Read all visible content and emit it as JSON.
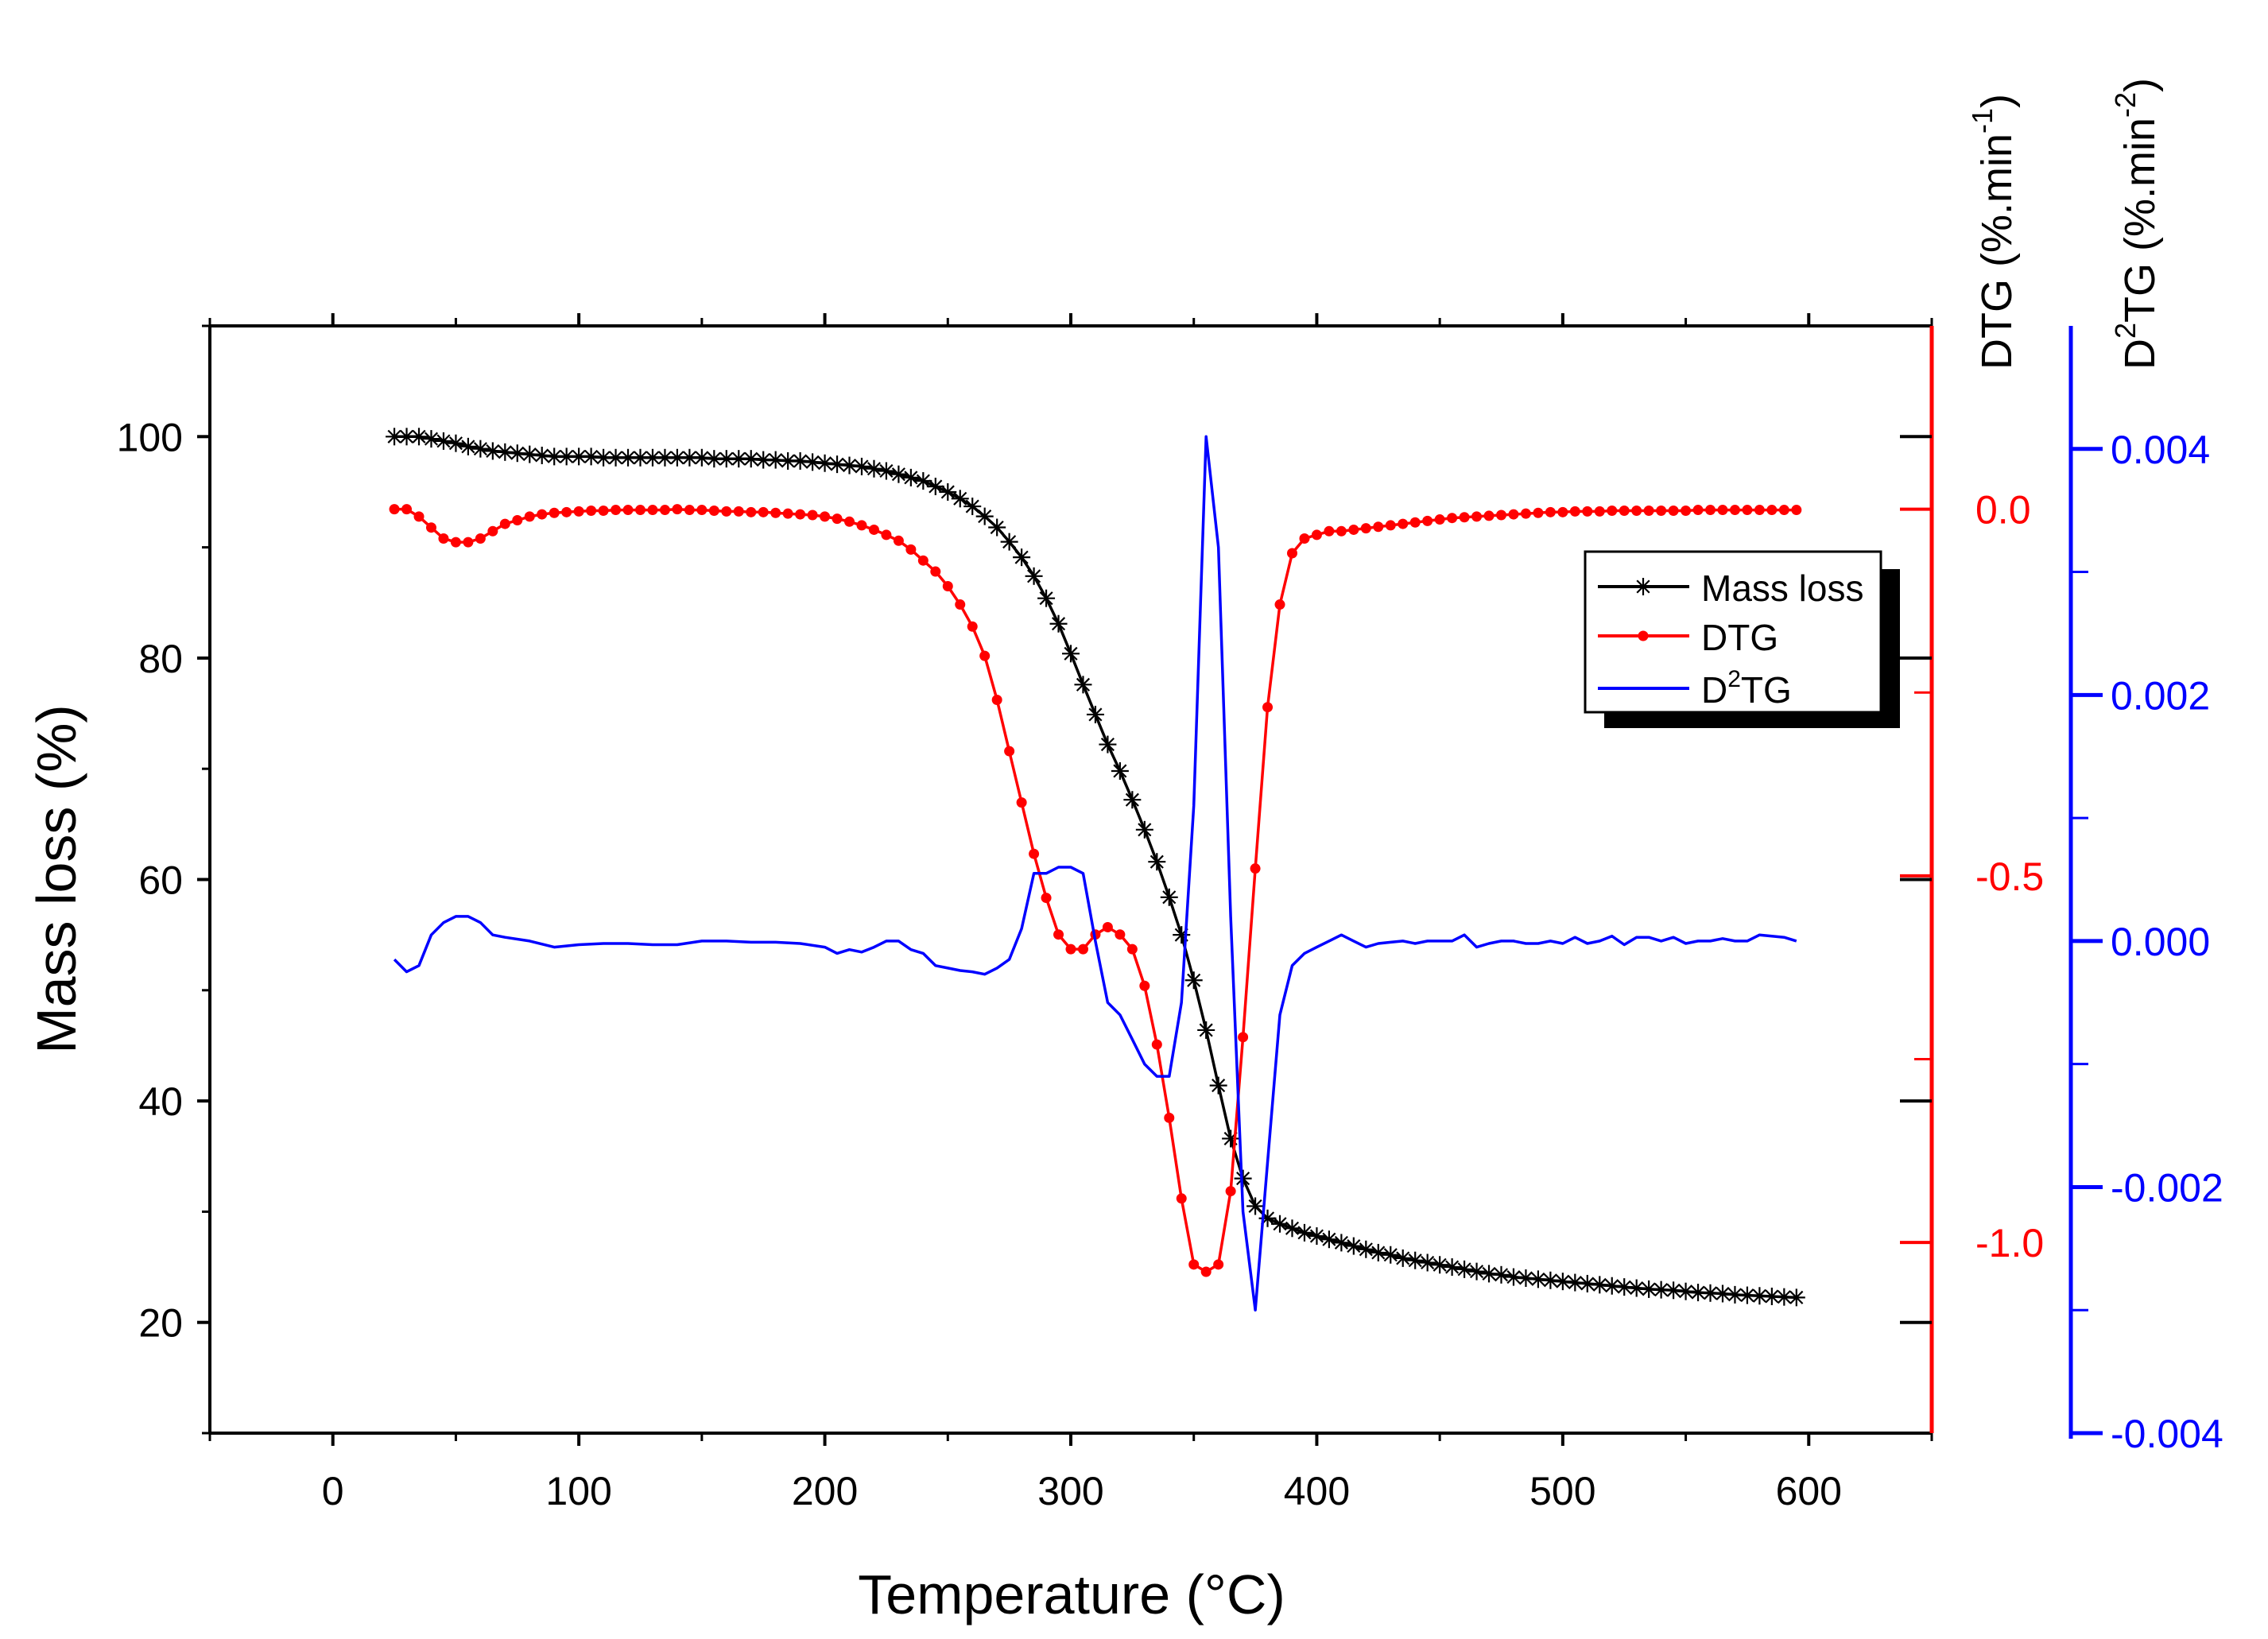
{
  "chart_data": {
    "type": "line",
    "title": "",
    "xlabel": "Temperature (°C)",
    "xlim": [
      -50,
      650
    ],
    "xticks": [
      0,
      100,
      200,
      300,
      400,
      500,
      600
    ],
    "xtick_labels": [
      "0",
      "100",
      "200",
      "300",
      "400",
      "500",
      "600"
    ],
    "axes": {
      "left": {
        "label": "Mass loss (%)",
        "color": "#000000",
        "ylim": [
          10,
          110
        ],
        "ticks": [
          20,
          40,
          60,
          80,
          100
        ],
        "tick_labels": [
          "20",
          "40",
          "60",
          "80",
          "100"
        ]
      },
      "dtg": {
        "label_main": "DTG (%.min",
        "label_sup": "-1",
        "label_close": ")",
        "color": "#ff0000",
        "ylim": [
          -1.26,
          0.25
        ],
        "ticks": [
          -1.0,
          -0.5,
          0.0
        ],
        "tick_labels": [
          "-1.0",
          "-0.5",
          "0.0"
        ]
      },
      "d2tg": {
        "label_pre": "D",
        "label_sup1": "2",
        "label_mid": "TG (%.min",
        "label_sup2": "-2",
        "label_close": ")",
        "color": "#0000ff",
        "ylim": [
          -0.004,
          0.005
        ],
        "ticks": [
          -0.004,
          -0.002,
          0.0,
          0.002,
          0.004
        ],
        "tick_labels": [
          "-0.004",
          "-0.002",
          "0.000",
          "0.002",
          "0.004"
        ]
      }
    },
    "legend": {
      "position": "center-right",
      "entries": [
        "Mass loss",
        "DTG",
        "TG"
      ],
      "d2tg_prefix": "D",
      "d2tg_sup": "2"
    },
    "series": [
      {
        "name": "Mass loss",
        "axis": "left",
        "color": "#000000",
        "marker": "asterisk",
        "x": [
          25,
          30,
          35,
          40,
          45,
          50,
          55,
          60,
          65,
          70,
          75,
          80,
          85,
          90,
          95,
          100,
          105,
          110,
          115,
          120,
          125,
          130,
          135,
          140,
          145,
          150,
          155,
          160,
          165,
          170,
          175,
          180,
          185,
          190,
          195,
          200,
          205,
          210,
          215,
          220,
          225,
          230,
          235,
          240,
          245,
          250,
          255,
          260,
          265,
          270,
          275,
          280,
          285,
          290,
          295,
          300,
          305,
          310,
          315,
          320,
          325,
          330,
          335,
          340,
          345,
          350,
          355,
          360,
          365,
          370,
          375,
          380,
          385,
          390,
          395,
          400,
          405,
          410,
          415,
          420,
          425,
          430,
          435,
          440,
          445,
          450,
          455,
          460,
          465,
          470,
          475,
          480,
          485,
          490,
          495,
          500,
          505,
          510,
          515,
          520,
          525,
          530,
          535,
          540,
          545,
          550,
          555,
          560,
          565,
          570,
          575,
          580,
          585,
          590,
          595
        ],
        "values": [
          100,
          100,
          100,
          99.8,
          99.6,
          99.4,
          99.1,
          98.9,
          98.7,
          98.6,
          98.5,
          98.4,
          98.3,
          98.2,
          98.2,
          98.2,
          98.2,
          98.1,
          98.1,
          98.1,
          98.1,
          98.1,
          98.1,
          98.1,
          98.1,
          98.1,
          98.0,
          98.0,
          98.0,
          98.0,
          97.9,
          97.9,
          97.8,
          97.8,
          97.7,
          97.6,
          97.5,
          97.4,
          97.3,
          97.1,
          96.9,
          96.6,
          96.3,
          96.0,
          95.5,
          95.0,
          94.4,
          93.7,
          92.8,
          91.8,
          90.5,
          89.1,
          87.4,
          85.4,
          83.1,
          80.4,
          77.6,
          74.9,
          72.2,
          69.8,
          67.2,
          64.5,
          61.6,
          58.4,
          55.0,
          50.9,
          46.4,
          41.4,
          36.6,
          33.0,
          30.5,
          29.4,
          28.9,
          28.5,
          28.1,
          27.8,
          27.5,
          27.2,
          26.9,
          26.6,
          26.3,
          26.1,
          25.8,
          25.6,
          25.4,
          25.2,
          25.0,
          24.8,
          24.6,
          24.4,
          24.3,
          24.1,
          24.0,
          23.9,
          23.8,
          23.7,
          23.6,
          23.5,
          23.4,
          23.3,
          23.2,
          23.1,
          23.0,
          22.95,
          22.9,
          22.8,
          22.7,
          22.65,
          22.6,
          22.5,
          22.45,
          22.4,
          22.35,
          22.3,
          22.25
        ]
      },
      {
        "name": "DTG",
        "axis": "dtg",
        "color": "#ff0000",
        "marker": "dot",
        "x": [
          25,
          30,
          35,
          40,
          45,
          50,
          55,
          60,
          65,
          70,
          75,
          80,
          85,
          90,
          95,
          100,
          105,
          110,
          115,
          120,
          125,
          130,
          135,
          140,
          145,
          150,
          155,
          160,
          165,
          170,
          175,
          180,
          185,
          190,
          195,
          200,
          205,
          210,
          215,
          220,
          225,
          230,
          235,
          240,
          245,
          250,
          255,
          260,
          265,
          270,
          275,
          280,
          285,
          290,
          295,
          300,
          305,
          310,
          315,
          320,
          325,
          330,
          335,
          340,
          345,
          350,
          355,
          360,
          365,
          370,
          375,
          380,
          385,
          390,
          395,
          400,
          405,
          410,
          415,
          420,
          425,
          430,
          435,
          440,
          445,
          450,
          455,
          460,
          465,
          470,
          475,
          480,
          485,
          490,
          495,
          500,
          505,
          510,
          515,
          520,
          525,
          530,
          535,
          540,
          545,
          550,
          555,
          560,
          565,
          570,
          575,
          580,
          585,
          590,
          595
        ],
        "values": [
          0,
          0,
          -0.01,
          -0.025,
          -0.04,
          -0.045,
          -0.045,
          -0.04,
          -0.03,
          -0.02,
          -0.015,
          -0.01,
          -0.007,
          -0.005,
          -0.004,
          -0.003,
          -0.002,
          -0.002,
          -0.001,
          -0.001,
          -0.001,
          -0.001,
          -0.001,
          0,
          -0.001,
          -0.001,
          -0.002,
          -0.003,
          -0.003,
          -0.004,
          -0.004,
          -0.005,
          -0.006,
          -0.007,
          -0.008,
          -0.01,
          -0.013,
          -0.017,
          -0.022,
          -0.028,
          -0.035,
          -0.043,
          -0.055,
          -0.07,
          -0.085,
          -0.105,
          -0.13,
          -0.16,
          -0.2,
          -0.26,
          -0.33,
          -0.4,
          -0.47,
          -0.53,
          -0.58,
          -0.6,
          -0.6,
          -0.58,
          -0.57,
          -0.58,
          -0.6,
          -0.65,
          -0.73,
          -0.83,
          -0.94,
          -1.03,
          -1.04,
          -1.03,
          -0.93,
          -0.72,
          -0.49,
          -0.27,
          -0.13,
          -0.06,
          -0.04,
          -0.035,
          -0.03,
          -0.03,
          -0.028,
          -0.026,
          -0.024,
          -0.022,
          -0.02,
          -0.018,
          -0.016,
          -0.014,
          -0.012,
          -0.011,
          -0.01,
          -0.009,
          -0.008,
          -0.007,
          -0.006,
          -0.005,
          -0.004,
          -0.004,
          -0.003,
          -0.003,
          -0.003,
          -0.002,
          -0.002,
          -0.002,
          -0.002,
          -0.002,
          -0.002,
          -0.002,
          -0.001,
          -0.001,
          -0.001,
          -0.001,
          -0.001,
          -0.001,
          -0.001,
          -0.001,
          -0.001
        ]
      },
      {
        "name": "D2TG",
        "axis": "d2tg",
        "color": "#0000ff",
        "marker": "none",
        "x": [
          25,
          30,
          35,
          40,
          45,
          50,
          55,
          60,
          65,
          70,
          80,
          90,
          100,
          110,
          120,
          130,
          140,
          150,
          160,
          170,
          180,
          190,
          200,
          205,
          210,
          215,
          220,
          225,
          230,
          235,
          240,
          245,
          250,
          255,
          260,
          265,
          270,
          275,
          280,
          285,
          290,
          295,
          300,
          305,
          310,
          315,
          320,
          325,
          330,
          335,
          340,
          345,
          350,
          355,
          360,
          365,
          370,
          375,
          380,
          385,
          390,
          395,
          400,
          405,
          410,
          415,
          420,
          425,
          430,
          435,
          440,
          445,
          450,
          455,
          460,
          465,
          470,
          475,
          480,
          485,
          490,
          495,
          500,
          505,
          510,
          515,
          520,
          525,
          530,
          535,
          540,
          545,
          550,
          555,
          560,
          565,
          570,
          575,
          580,
          585,
          590,
          595
        ],
        "values": [
          -0.00015,
          -0.00025,
          -0.0002,
          5e-05,
          0.00015,
          0.0002,
          0.0002,
          0.00015,
          5e-05,
          3e-05,
          0.0,
          -5e-05,
          -3e-05,
          -2e-05,
          -2e-05,
          -3e-05,
          -3e-05,
          0.0,
          0.0,
          -1e-05,
          -1e-05,
          -2e-05,
          -5e-05,
          -0.0001,
          -7e-05,
          -9e-05,
          -5e-05,
          0.0,
          0.0,
          -7e-05,
          -0.0001,
          -0.0002,
          -0.00022,
          -0.00024,
          -0.00025,
          -0.00027,
          -0.00022,
          -0.00015,
          0.0001,
          0.00055,
          0.00055,
          0.0006,
          0.0006,
          0.00055,
          0.0,
          -0.0005,
          -0.0006,
          -0.0008,
          -0.001,
          -0.0011,
          -0.0011,
          -0.0005,
          0.0011,
          0.0041,
          0.0032,
          0.0002,
          -0.0022,
          -0.003,
          -0.0018,
          -0.0006,
          -0.0002,
          -0.0001,
          -5e-05,
          0.0,
          5e-05,
          0.0,
          -5e-05,
          -2e-05,
          -1e-05,
          0.0,
          -2e-05,
          0.0,
          0.0,
          0.0,
          5e-05,
          -5e-05,
          -2e-05,
          0.0,
          0.0,
          -2e-05,
          -2e-05,
          0.0,
          -2e-05,
          3e-05,
          -2e-05,
          0.0,
          4e-05,
          -3e-05,
          3e-05,
          3e-05,
          0.0,
          3e-05,
          -2e-05,
          0.0,
          0.0,
          2e-05,
          0.0,
          0.0,
          5e-05,
          4e-05,
          3e-05,
          0.0
        ]
      }
    ]
  }
}
